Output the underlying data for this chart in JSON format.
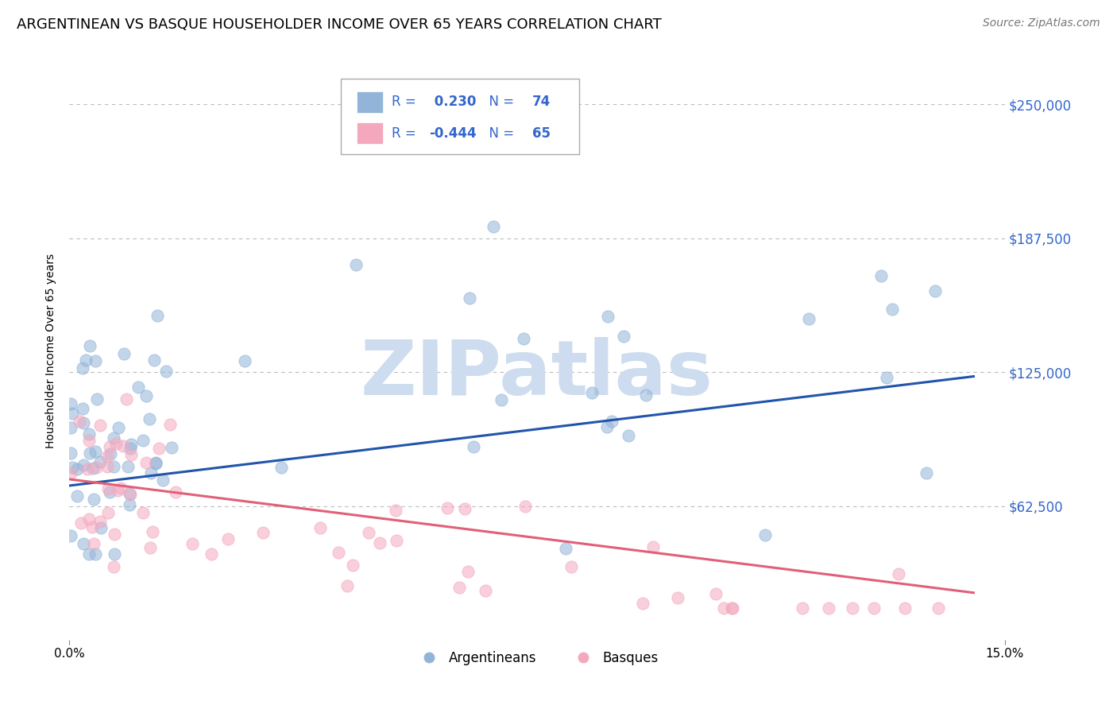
{
  "title": "ARGENTINEAN VS BASQUE HOUSEHOLDER INCOME OVER 65 YEARS CORRELATION CHART",
  "source": "Source: ZipAtlas.com",
  "ylabel": "Householder Income Over 65 years",
  "xmin": 0.0,
  "xmax": 0.15,
  "ymin": 0,
  "ymax": 270000,
  "yticks": [
    0,
    62500,
    125000,
    187500,
    250000
  ],
  "ytick_labels": [
    "",
    "$62,500",
    "$125,000",
    "$187,500",
    "$250,000"
  ],
  "blue_color": "#92b4d8",
  "pink_color": "#f4a8be",
  "blue_line_color": "#2255aa",
  "pink_line_color": "#e0607a",
  "grid_color": "#bbbbbb",
  "watermark_color": "#cddcee",
  "R_blue": 0.23,
  "N_blue": 74,
  "R_pink": -0.444,
  "N_pink": 65,
  "legend_text_color": "#3366cc",
  "title_fontsize": 13,
  "source_fontsize": 10,
  "tick_label_color": "#3366cc",
  "ylabel_fontsize": 10,
  "background_color": "#ffffff",
  "blue_trend_x0": 0.0,
  "blue_trend_x1": 0.145,
  "blue_trend_y0": 72000,
  "blue_trend_y1": 123000,
  "pink_trend_x0": 0.0,
  "pink_trend_x1": 0.145,
  "pink_trend_y0": 75000,
  "pink_trend_y1": 22000
}
